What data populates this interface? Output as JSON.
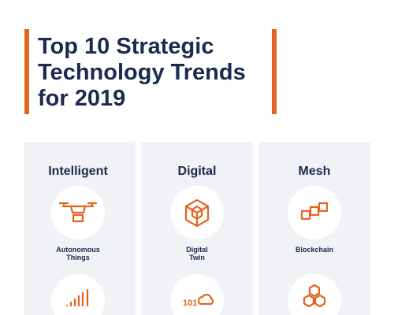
{
  "header": {
    "title_lines": [
      "Top 10 Strategic",
      "Technology Trends",
      "for 2019"
    ]
  },
  "columns": [
    {
      "heading": "Intelligent",
      "items": [
        {
          "label_lines": [
            "Autonomous",
            "Things"
          ]
        }
      ]
    },
    {
      "heading": "Digital",
      "items": [
        {
          "label_lines": [
            "Digital",
            "Twin"
          ]
        }
      ]
    },
    {
      "heading": "Mesh",
      "items": [
        {
          "label_lines": [
            "Blockchain"
          ]
        }
      ]
    }
  ]
}
